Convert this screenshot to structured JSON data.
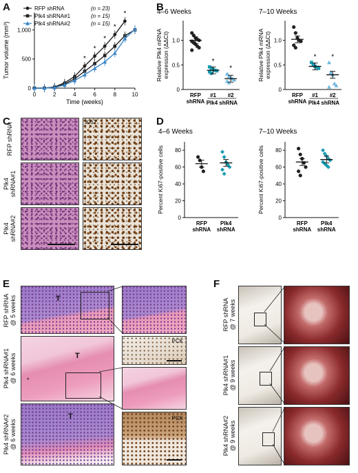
{
  "panels": {
    "A": {
      "label": "A",
      "legend": [
        {
          "name": "RFP shRNA",
          "n": "(n = 23)",
          "color": "#222222",
          "marker": "circle"
        },
        {
          "name": "Plk4 shRNA#1",
          "n": "(n = 15)",
          "color": "#222222",
          "marker": "square"
        },
        {
          "name": "Plk4 shRNA#2",
          "n": "(n = 15)",
          "color": "#3a86c8",
          "marker": "triangle"
        }
      ],
      "ylabel": "Tumor volume (mm³)",
      "xlabel": "Time (weeks)",
      "star": "*"
    },
    "B": {
      "label": "B",
      "left_title": "4–6 Weeks",
      "right_title": "7–10 Weeks",
      "ylabel_line1": "Relative Plk4 mRNA",
      "ylabel_line2": "expression (ΔΔCt)",
      "cat_rfp_1": "RFP",
      "cat_rfp_2": "shRNA",
      "cat_1": "#1",
      "cat_2": "#2",
      "group_label": "Plk4 shRNA",
      "star": "*"
    },
    "C": {
      "label": "C",
      "ki67": "Ki67",
      "rows": [
        "RFP shRNA",
        "Plk4 shRNA#1",
        "Plk4 shRNA#2"
      ],
      "row_lines": [
        [
          "RFP shRNA"
        ],
        [
          "Plk4",
          "shRNA#1"
        ],
        [
          "Plk4",
          "shRNA#2"
        ]
      ]
    },
    "D": {
      "label": "D",
      "left_title": "4–6 Weeks",
      "right_title": "7–10 Weeks",
      "ylabel": "Percent Ki67-positive cells",
      "cat_rfp_1": "RFP",
      "cat_rfp_2": "shRNA",
      "cat_plk_1": "Plk4",
      "cat_plk_2": "shRNA"
    },
    "E": {
      "label": "E",
      "rows": [
        {
          "line1": "RFP shRNA",
          "line2": "@ 5 weeks"
        },
        {
          "line1": "Plk4 shRNA#1",
          "line2": "@ 6 weeks"
        },
        {
          "line1": "Plk4 shRNA#2",
          "line2": "@ 6 weeks"
        }
      ],
      "T": "T",
      "PCK": "PCK",
      "asterisk": "*"
    },
    "F": {
      "label": "F",
      "rows": [
        {
          "line1": "RFP shRNA",
          "line2": "@ 7 weeks"
        },
        {
          "line1": "Plk4 shRNA#1",
          "line2": "@ 9 weeks"
        },
        {
          "line1": "Plk4 shRNA#2",
          "line2": "@ 9 weeks"
        }
      ]
    }
  },
  "chart_data": [
    {
      "type": "line",
      "panel": "A",
      "x": [
        0,
        1,
        2,
        3,
        4,
        5,
        6,
        7,
        8,
        9,
        10
      ],
      "series": [
        {
          "name": "RFP shRNA",
          "values": [
            0,
            0,
            20,
            90,
            200,
            380,
            550,
            720,
            920,
            1150,
            null
          ]
        },
        {
          "name": "Plk4 shRNA#1",
          "values": [
            0,
            0,
            15,
            70,
            160,
            290,
            420,
            560,
            720,
            900,
            1000
          ]
        },
        {
          "name": "Plk4 shRNA#2",
          "values": [
            0,
            0,
            10,
            55,
            130,
            230,
            340,
            450,
            600,
            850,
            1010
          ]
        }
      ],
      "ylim": [
        0,
        1300
      ],
      "xlim": [
        0,
        10
      ],
      "yticks": [
        0,
        500,
        1000
      ],
      "ytick_labels": [
        "0",
        "500",
        "1,000"
      ],
      "xticks": [
        0,
        2,
        4,
        6,
        8,
        10
      ],
      "stars_at_x": [
        5,
        6,
        7,
        8,
        9
      ],
      "xlabel": "Time (weeks)",
      "ylabel": "Tumor volume (mm³)"
    },
    {
      "type": "scatter",
      "panel": "B-left",
      "title": "4–6 Weeks",
      "categories": [
        "RFP shRNA",
        "#1",
        "#2"
      ],
      "points": [
        [
          1.15,
          1.1,
          1.05,
          1.02,
          1.0,
          0.98,
          0.95,
          0.92,
          0.88,
          0.85,
          0.8
        ],
        [
          0.46,
          0.43,
          0.41,
          0.39,
          0.38,
          0.36,
          0.33
        ],
        [
          0.32,
          0.27,
          0.24,
          0.22,
          0.2,
          0.17,
          0.14
        ]
      ],
      "means": [
        1.0,
        0.39,
        0.22
      ],
      "ylim": [
        0,
        1.4
      ],
      "yticks": [
        0,
        0.5,
        1.0
      ],
      "ytick_labels": [
        "0",
        "0.5",
        "1.0"
      ]
    },
    {
      "type": "scatter",
      "panel": "B-right",
      "title": "7–10 Weeks",
      "categories": [
        "RFP shRNA",
        "#1",
        "#2"
      ],
      "points": [
        [
          1.27,
          1.15,
          1.05,
          1.0,
          0.98,
          0.9,
          0.85
        ],
        [
          0.55,
          0.5,
          0.47,
          0.45,
          0.43
        ],
        [
          0.55,
          0.35,
          0.3,
          0.12,
          0.08,
          0.05
        ]
      ],
      "means": [
        1.02,
        0.47,
        0.3
      ],
      "ylim": [
        0,
        1.4
      ],
      "yticks": [
        0,
        0.5,
        1.0
      ],
      "ytick_labels": [
        "0",
        "0.5",
        "1.0"
      ]
    },
    {
      "type": "scatter",
      "panel": "D-left",
      "title": "4–6 Weeks",
      "categories": [
        "RFP shRNA",
        "Plk4 shRNA"
      ],
      "points": [
        [
          72,
          68,
          60,
          55
        ],
        [
          78,
          72,
          66,
          63,
          60,
          57,
          52
        ]
      ],
      "means": [
        64,
        65
      ],
      "ylim": [
        0,
        90
      ],
      "yticks": [
        0,
        20,
        40,
        60,
        80
      ],
      "ytick_labels": [
        "0",
        "20",
        "40",
        "60",
        "80"
      ]
    },
    {
      "type": "scatter",
      "panel": "D-right",
      "title": "7–10 Weeks",
      "categories": [
        "RFP shRNA",
        "Plk4 shRNA"
      ],
      "points": [
        [
          82,
          75,
          70,
          65,
          60,
          55,
          50
        ],
        [
          80,
          76,
          73,
          70,
          68,
          66,
          64,
          62,
          60
        ]
      ],
      "means": [
        66,
        69
      ],
      "ylim": [
        0,
        90
      ],
      "yticks": [
        0,
        20,
        40,
        60,
        80
      ],
      "ytick_labels": [
        "0",
        "20",
        "40",
        "60",
        "80"
      ]
    }
  ]
}
